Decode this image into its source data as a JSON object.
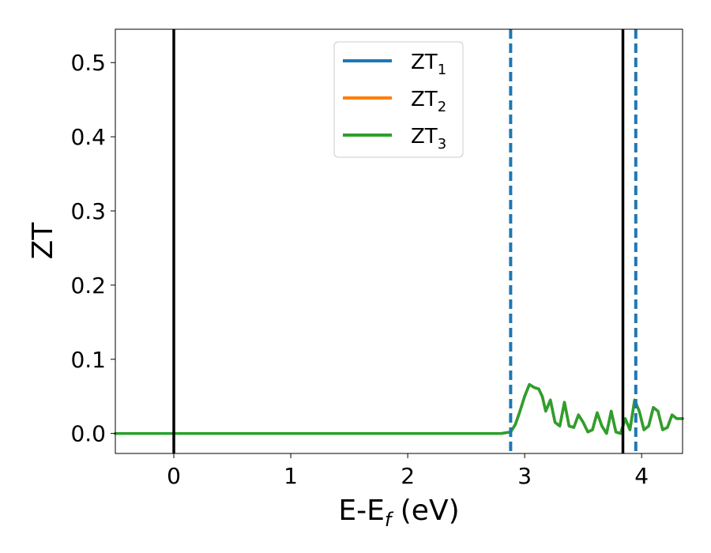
{
  "chart_data": {
    "type": "line",
    "title": "",
    "xlabel_main": "E-E",
    "xlabel_sub": "f",
    "xlabel_tail": " (eV)",
    "ylabel": "ZT",
    "xlim": [
      -0.5,
      4.35
    ],
    "ylim": [
      -0.027,
      0.545
    ],
    "xticks": [
      0,
      1,
      2,
      3,
      4
    ],
    "xtick_labels": [
      "0",
      "1",
      "2",
      "3",
      "4"
    ],
    "yticks": [
      0.0,
      0.1,
      0.2,
      0.3,
      0.4,
      0.5
    ],
    "ytick_labels": [
      "0.0",
      "0.1",
      "0.2",
      "0.3",
      "0.4",
      "0.5"
    ],
    "grid": false,
    "legend_position": "top-center",
    "reference_lines": [
      {
        "x": 0.0,
        "style": "solid",
        "color": "#000000"
      },
      {
        "x": 3.84,
        "style": "solid",
        "color": "#000000"
      },
      {
        "x": 2.88,
        "style": "dashed",
        "color": "#1f77b4"
      },
      {
        "x": 3.95,
        "style": "dashed",
        "color": "#1f77b4"
      }
    ],
    "series": [
      {
        "name": "ZT",
        "subscript": "1",
        "color": "#1f77b4",
        "x": [
          -0.5,
          2.8,
          2.88,
          2.92,
          2.96,
          3.0,
          3.04,
          3.08,
          3.12,
          3.15,
          3.18,
          3.22,
          3.26,
          3.3,
          3.34,
          3.38,
          3.42,
          3.46,
          3.5,
          3.54,
          3.58,
          3.62,
          3.66,
          3.7,
          3.74,
          3.78,
          3.82,
          3.86,
          3.9,
          3.94,
          3.98,
          4.02,
          4.06,
          4.1,
          4.14,
          4.18,
          4.22,
          4.26,
          4.3,
          4.35
        ],
        "y": [
          0.0,
          0.0,
          0.002,
          0.012,
          0.03,
          0.05,
          0.066,
          0.062,
          0.06,
          0.05,
          0.03,
          0.045,
          0.015,
          0.01,
          0.042,
          0.01,
          0.008,
          0.025,
          0.015,
          0.002,
          0.005,
          0.028,
          0.01,
          0.0,
          0.03,
          0.002,
          0.0,
          0.02,
          0.005,
          0.045,
          0.03,
          0.005,
          0.01,
          0.035,
          0.03,
          0.005,
          0.008,
          0.025,
          0.02,
          0.02
        ]
      },
      {
        "name": "ZT",
        "subscript": "2",
        "color": "#ff7f0e",
        "x": [
          -0.5,
          2.8,
          2.88,
          2.92,
          2.96,
          3.0,
          3.04,
          3.08,
          3.12,
          3.15,
          3.18,
          3.22,
          3.26,
          3.3,
          3.34,
          3.38,
          3.42,
          3.46,
          3.5,
          3.54,
          3.58,
          3.62,
          3.66,
          3.7,
          3.74,
          3.78,
          3.82,
          3.86,
          3.9,
          3.94,
          3.98,
          4.02,
          4.06,
          4.1,
          4.14,
          4.18,
          4.22,
          4.26,
          4.3,
          4.35
        ],
        "y": [
          0.0,
          0.0,
          0.002,
          0.012,
          0.03,
          0.05,
          0.066,
          0.062,
          0.06,
          0.05,
          0.03,
          0.045,
          0.015,
          0.01,
          0.042,
          0.01,
          0.008,
          0.025,
          0.015,
          0.002,
          0.005,
          0.028,
          0.01,
          0.0,
          0.03,
          0.002,
          0.0,
          0.02,
          0.005,
          0.045,
          0.03,
          0.005,
          0.01,
          0.035,
          0.03,
          0.005,
          0.008,
          0.025,
          0.02,
          0.02
        ]
      },
      {
        "name": "ZT",
        "subscript": "3",
        "color": "#2ca02c",
        "x": [
          -0.5,
          2.8,
          2.88,
          2.92,
          2.96,
          3.0,
          3.04,
          3.08,
          3.12,
          3.15,
          3.18,
          3.22,
          3.26,
          3.3,
          3.34,
          3.38,
          3.42,
          3.46,
          3.5,
          3.54,
          3.58,
          3.62,
          3.66,
          3.7,
          3.74,
          3.78,
          3.82,
          3.86,
          3.9,
          3.94,
          3.98,
          4.02,
          4.06,
          4.1,
          4.14,
          4.18,
          4.22,
          4.26,
          4.3,
          4.35
        ],
        "y": [
          0.0,
          0.0,
          0.002,
          0.012,
          0.03,
          0.05,
          0.066,
          0.062,
          0.06,
          0.05,
          0.03,
          0.045,
          0.015,
          0.01,
          0.042,
          0.01,
          0.008,
          0.025,
          0.015,
          0.002,
          0.005,
          0.028,
          0.01,
          0.0,
          0.03,
          0.002,
          0.0,
          0.02,
          0.005,
          0.045,
          0.03,
          0.005,
          0.01,
          0.035,
          0.03,
          0.005,
          0.008,
          0.025,
          0.02,
          0.02
        ]
      }
    ]
  }
}
